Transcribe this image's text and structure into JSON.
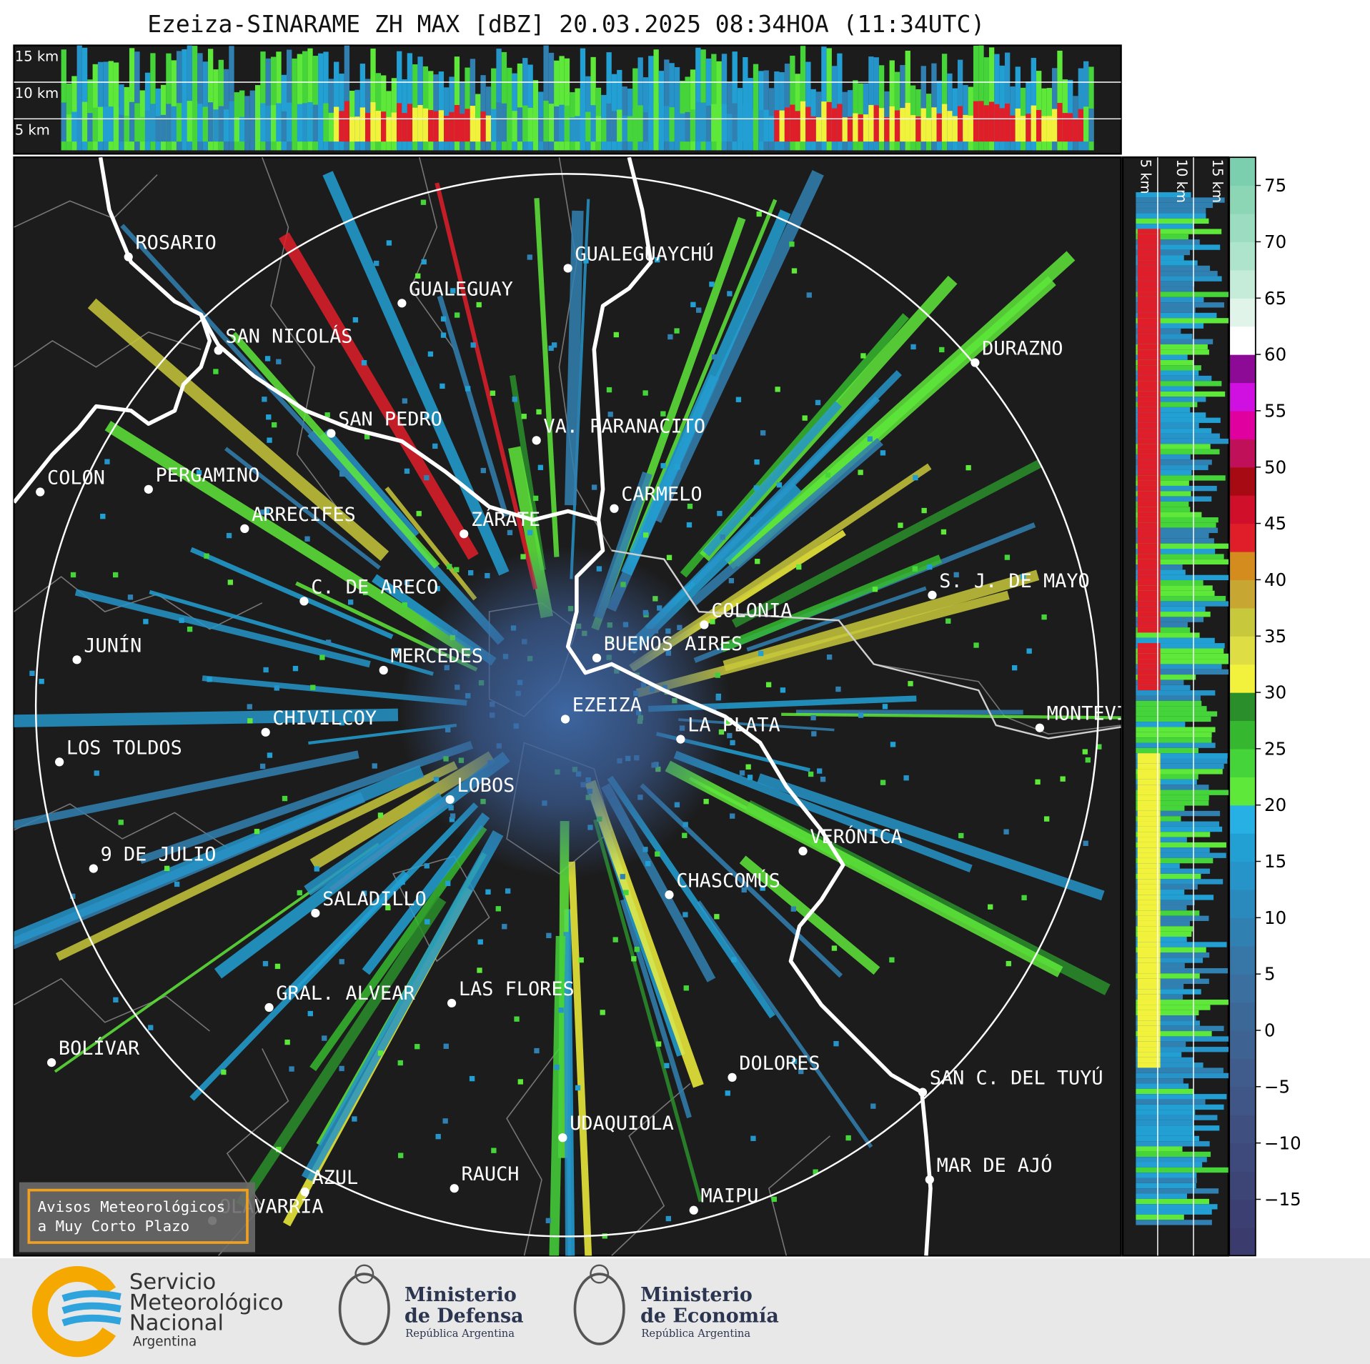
{
  "header": {
    "title": "Ezeiza-SINARAME ZH MAX [dBZ] 20.03.2025 08:34HOA (11:34UTC)"
  },
  "map": {
    "cities": [
      "ROSARIO",
      "GUALEGUAYCHÚ",
      "GUALEGUAY",
      "SAN NICOLÁS",
      "DURAZNO",
      "SAN PEDRO",
      "VA. PARANACITO",
      "COLON",
      "PERGAMINO",
      "CARMELO",
      "ARRECIFES",
      "ZÁRATE",
      "S. J. DE MAYO",
      "C. DE ARECO",
      "COLONIA",
      "BUENOS AIRES",
      "JUNÍN",
      "MERCEDES",
      "EZEIZA",
      "CHIVILCOY",
      "LA PLATA",
      "MONTEVIDEO",
      "LOS TOLDOS",
      "LOBOS",
      "VERÓNICA",
      "9 DE JULIO",
      "CHASCOMÚS",
      "SALADILLO",
      "GRAL. ALVEAR",
      "LAS FLORES",
      "BOLÍVAR",
      "DOLORES",
      "SAN C. DEL TUYÚ",
      "UDAQUIOLA",
      "MAR DE AJÓ",
      "AZUL",
      "RAUCH",
      "OLAVARRÍA",
      "MAIPU"
    ]
  },
  "cross_sections": {
    "top_labels": [
      "15 km",
      "10 km",
      "5 km"
    ],
    "side_labels": [
      "5 km",
      "10 km",
      "15 km"
    ]
  },
  "colorbar": {
    "vlim": [
      -20,
      77.5
    ],
    "ticks": [
      {
        "value": -15,
        "label": "−15"
      },
      {
        "value": -10,
        "label": "−10"
      },
      {
        "value": -5,
        "label": "−5"
      },
      0,
      5,
      10,
      15,
      20,
      25,
      30,
      35,
      40,
      45,
      50,
      55,
      60,
      65,
      70,
      75
    ],
    "colors": [
      "#3b3b6e",
      "#3c3f72",
      "#3d4476",
      "#3e4a7b",
      "#3f5080",
      "#3f5686",
      "#3f5c8c",
      "#3e6292",
      "#3c6898",
      "#3a6f9f",
      "#3677a8",
      "#3180b2",
      "#2b8abd",
      "#2694c8",
      "#22a0d4",
      "#26b0e4",
      "#5ee83a",
      "#45d43a",
      "#35b82f",
      "#2a8f2a",
      "#f2f23c",
      "#dede44",
      "#c8c83c",
      "#c8a632",
      "#d48c1e",
      "#e01e2a",
      "#d0102a",
      "#a80a14",
      "#c0105a",
      "#e000a0",
      "#d010e0",
      "#8c0a96",
      "#ffffff",
      "#e0f4ea",
      "#c4ecd9",
      "#aee4cc",
      "#9cdcc0",
      "#8cd6b6",
      "#7ccfae"
    ]
  },
  "warning": {
    "lines": [
      "Avisos Meteorológicos",
      "a Muy Corto Plazo"
    ]
  },
  "footer": {
    "smn": [
      "Servicio",
      "Meteorológico",
      "Nacional",
      "Argentina"
    ],
    "defensa": [
      "Ministerio",
      "de Defensa",
      "República Argentina"
    ],
    "economia": [
      "Ministerio",
      "de Economía",
      "República Argentina"
    ]
  }
}
